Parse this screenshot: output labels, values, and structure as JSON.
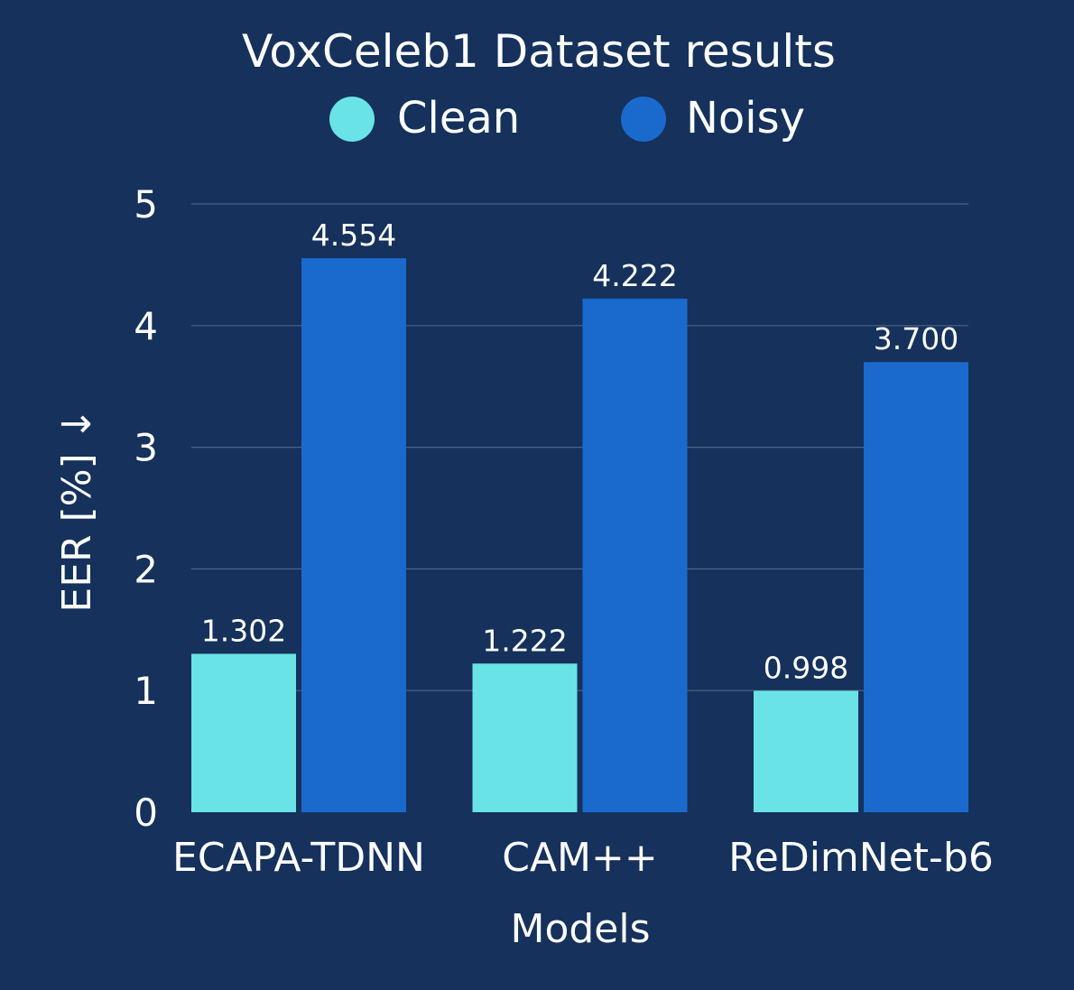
{
  "chart_data": {
    "type": "bar",
    "title": "VoxCeleb1 Dataset results",
    "xlabel": "Models",
    "ylabel": "EER [%] ↓",
    "categories": [
      "ECAPA-TDNN",
      "CAM++",
      "ReDimNet-b6"
    ],
    "series": [
      {
        "name": "Clean",
        "color": "#6ae3e6",
        "values": [
          1.302,
          1.222,
          0.998
        ],
        "labels": [
          "1.302",
          "1.222",
          "0.998"
        ]
      },
      {
        "name": "Noisy",
        "color": "#1a6ace",
        "values": [
          4.554,
          4.222,
          3.7
        ],
        "labels": [
          "4.554",
          "4.222",
          "3.700"
        ]
      }
    ],
    "ylim": [
      0,
      5
    ],
    "yticks": [
      0,
      1,
      2,
      3,
      4,
      5
    ],
    "ytick_labels": [
      "0",
      "1",
      "2",
      "3",
      "4",
      "5"
    ],
    "grid": true,
    "legend_position": "top-center",
    "background_color": "#15315c"
  }
}
